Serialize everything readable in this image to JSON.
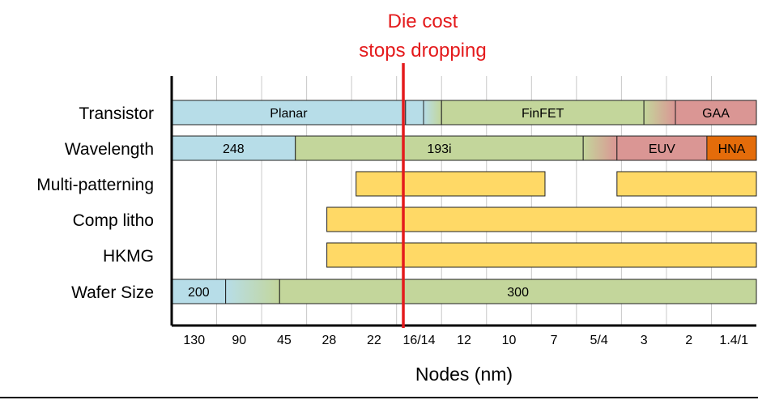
{
  "chart_data": {
    "type": "timeline",
    "title": "Die cost stops dropping",
    "annotation": {
      "lines": [
        "Die cost",
        "stops dropping"
      ],
      "marker_node": "22 / 16/14 boundary",
      "color": "#e41a1c"
    },
    "xlabel": "Nodes (nm)",
    "nodes": [
      "130",
      "90",
      "45",
      "28",
      "22",
      "16/14",
      "12",
      "10",
      "7",
      "5/4",
      "3",
      "2",
      "1.4/1"
    ],
    "rows": [
      {
        "label": "Transistor",
        "segments": [
          {
            "label": "Planar",
            "start": 0,
            "end": 5.2,
            "color": "#b7dde8"
          },
          {
            "label": "",
            "start": 5.2,
            "end": 5.6,
            "color": "#b7dde8"
          },
          {
            "label": "",
            "start": 5.6,
            "end": 6.0,
            "gradient": [
              "#b7dde8",
              "#c3d69b"
            ]
          },
          {
            "label": "FinFET",
            "start": 6.0,
            "end": 10.5,
            "color": "#c3d69b"
          },
          {
            "label": "",
            "start": 10.5,
            "end": 11.2,
            "gradient": [
              "#c3d69b",
              "#da9694"
            ]
          },
          {
            "label": "GAA",
            "start": 11.2,
            "end": 13,
            "color": "#da9694"
          }
        ]
      },
      {
        "label": "Wavelength",
        "segments": [
          {
            "label": "248",
            "start": 0,
            "end": 2.75,
            "color": "#b7dde8"
          },
          {
            "label": "193i",
            "start": 2.75,
            "end": 9.15,
            "color": "#c3d69b"
          },
          {
            "label": "",
            "start": 9.15,
            "end": 9.9,
            "gradient": [
              "#c3d69b",
              "#da9694"
            ]
          },
          {
            "label": "EUV",
            "start": 9.9,
            "end": 11.9,
            "color": "#da9694"
          },
          {
            "label": "HNA",
            "start": 11.9,
            "end": 13,
            "color": "#e46c0a"
          }
        ]
      },
      {
        "label": "Multi-patterning",
        "segments": [
          {
            "label": "",
            "start": 4.1,
            "end": 8.3,
            "color": "#ffd966"
          },
          {
            "label": "",
            "start": 9.9,
            "end": 13,
            "color": "#ffd966"
          }
        ]
      },
      {
        "label": "Comp litho",
        "segments": [
          {
            "label": "",
            "start": 3.45,
            "end": 13,
            "color": "#ffd966"
          }
        ]
      },
      {
        "label": "HKMG",
        "segments": [
          {
            "label": "",
            "start": 3.45,
            "end": 13,
            "color": "#ffd966"
          }
        ]
      },
      {
        "label": "Wafer Size",
        "segments": [
          {
            "label": "200",
            "start": 0,
            "end": 1.2,
            "color": "#b7dde8"
          },
          {
            "label": "",
            "start": 1.2,
            "end": 2.4,
            "gradient": [
              "#b7dde8",
              "#c3d69b"
            ]
          },
          {
            "label": "300",
            "start": 2.4,
            "end": 13,
            "color": "#c3d69b"
          }
        ]
      }
    ]
  }
}
